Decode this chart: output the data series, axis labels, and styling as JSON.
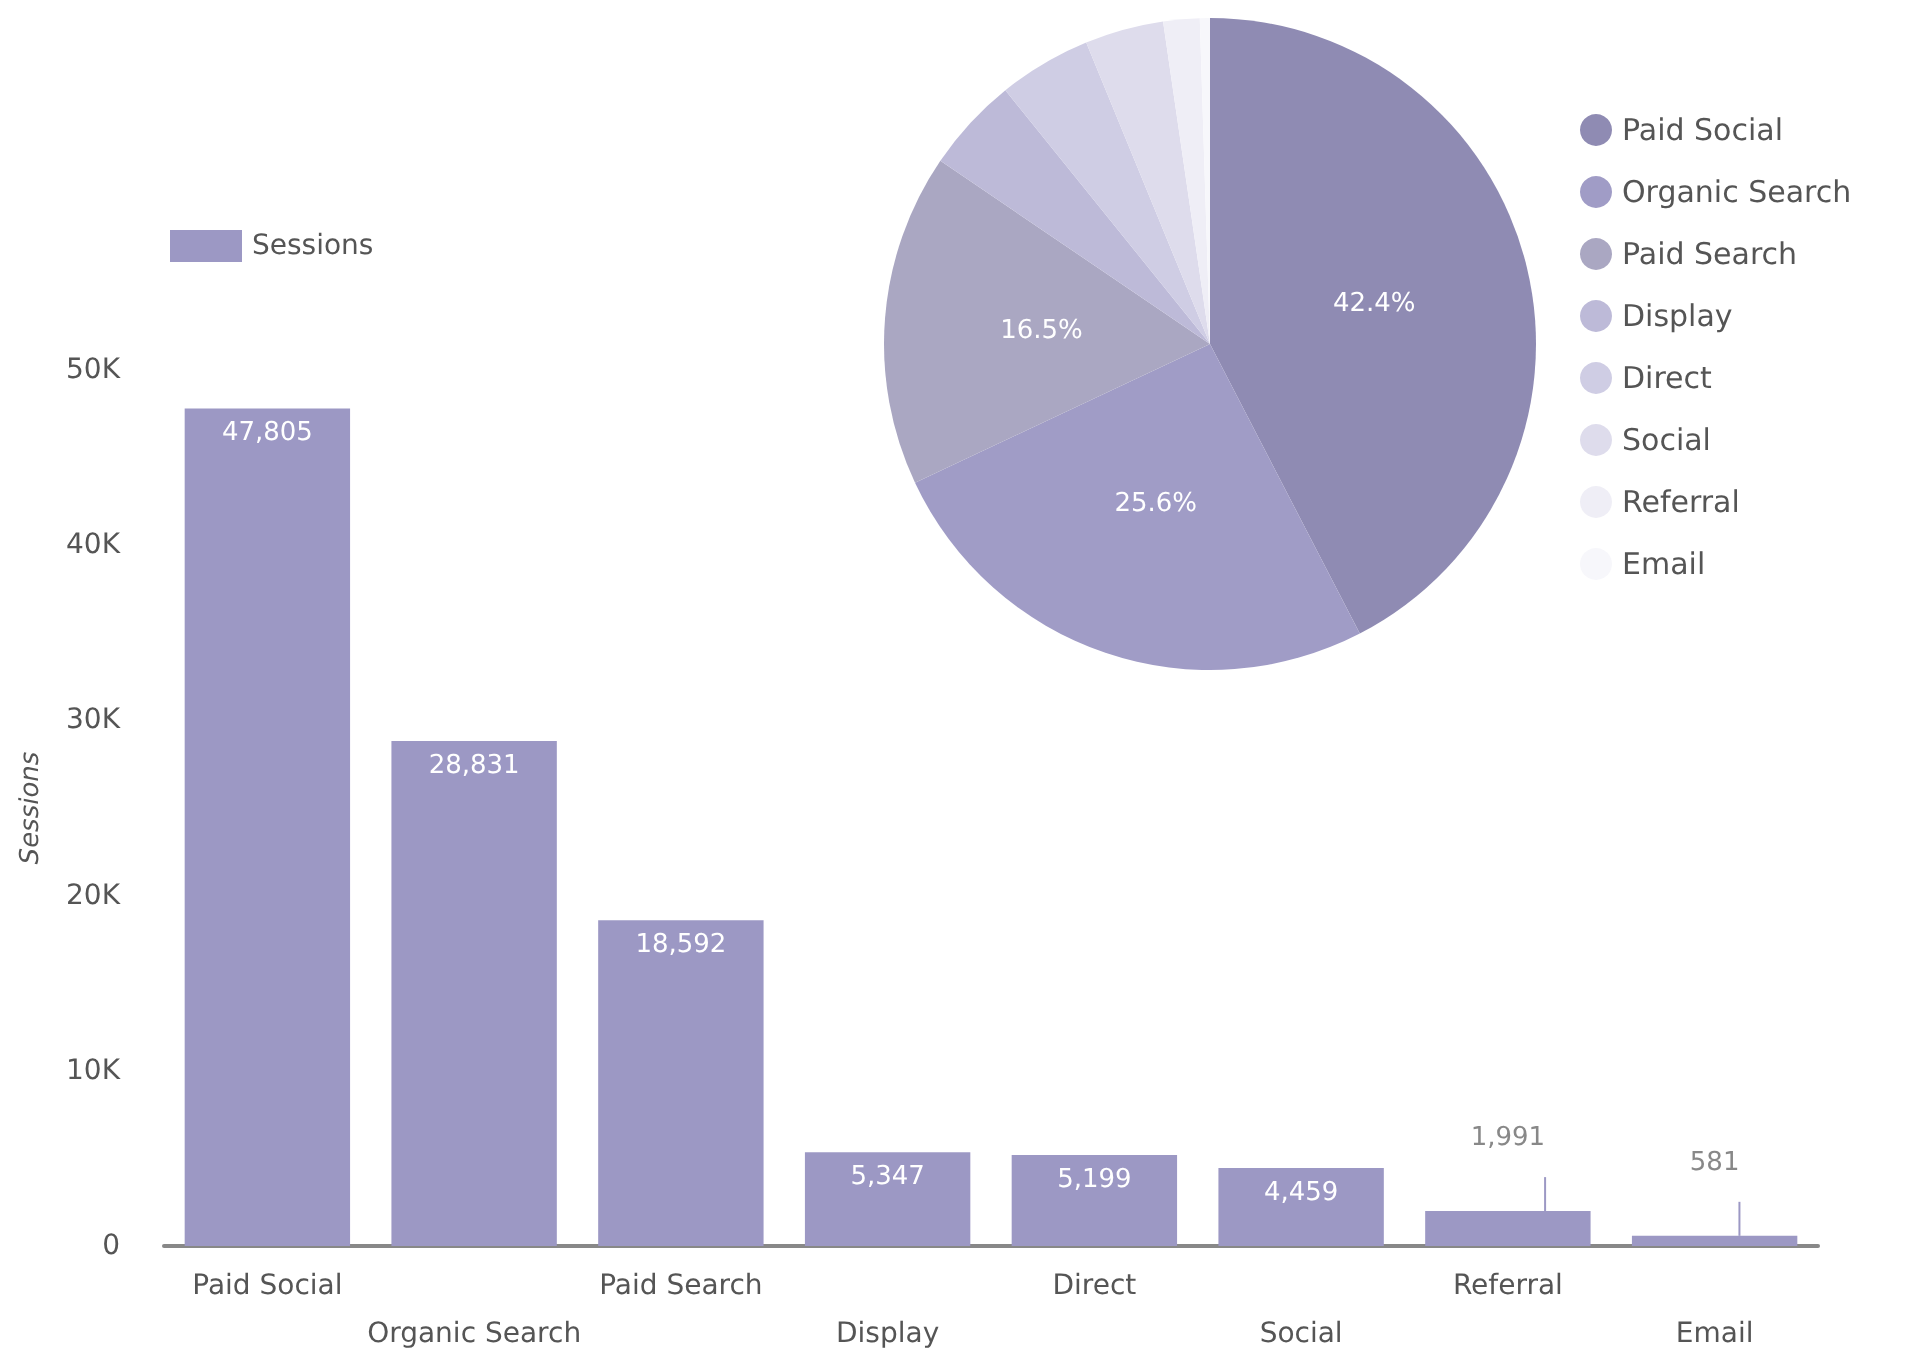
{
  "chart_data": [
    {
      "type": "bar",
      "categories": [
        "Paid Social",
        "Organic Search",
        "Paid Search",
        "Display",
        "Direct",
        "Social",
        "Referral",
        "Email"
      ],
      "series": [
        {
          "name": "Sessions",
          "color": "#9c98c4",
          "values": [
            47805,
            28831,
            18592,
            5347,
            5199,
            4459,
            1991,
            581
          ],
          "value_labels": [
            "47,805",
            "28,831",
            "18,592",
            "5,347",
            "5,199",
            "4,459",
            "1,991",
            "581"
          ]
        }
      ],
      "ylabel": "Sessions",
      "ylim": [
        0,
        50000
      ],
      "yticks": [
        0,
        {
          "value": 10000,
          "label": "10K"
        },
        {
          "value": 20000,
          "label": "20K"
        },
        {
          "value": 30000,
          "label": "30K"
        },
        {
          "value": 40000,
          "label": "40K"
        },
        {
          "value": 50000,
          "label": "50K"
        }
      ],
      "legend": "top left",
      "grid": false
    },
    {
      "type": "pie",
      "categories": [
        "Paid Social",
        "Organic Search",
        "Paid Search",
        "Display",
        "Direct",
        "Social",
        "Referral",
        "Email"
      ],
      "values": [
        42.4,
        25.6,
        16.5,
        4.7,
        4.6,
        3.9,
        1.8,
        0.5
      ],
      "colors": [
        "#8f8bb3",
        "#a09cc6",
        "#aaa7c2",
        "#bdbad8",
        "#cfcde4",
        "#dedcec",
        "#efeef6",
        "#f7f7fb"
      ],
      "value_labels": [
        "42.4%",
        "25.6%",
        "16.5%",
        null,
        null,
        null,
        null,
        null
      ],
      "legend": "right"
    }
  ]
}
